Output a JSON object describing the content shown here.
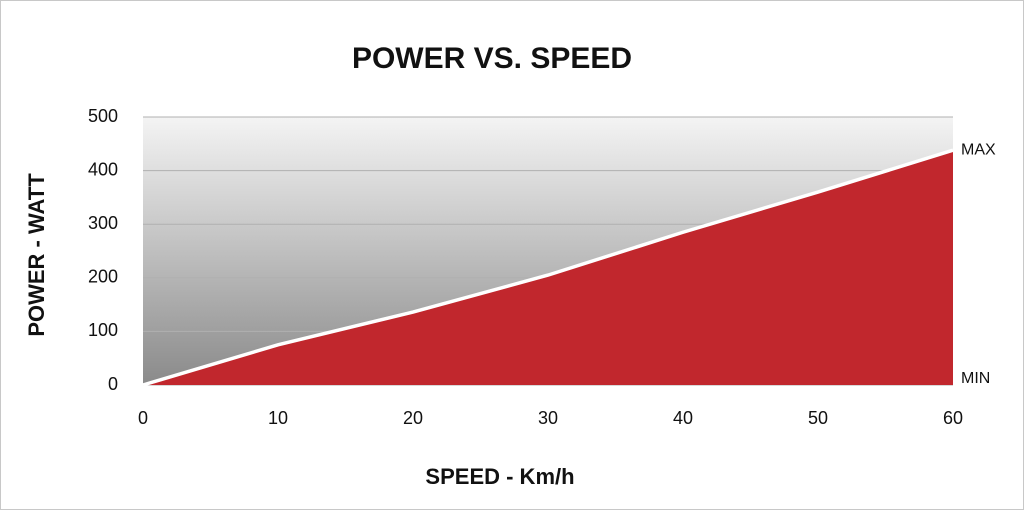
{
  "chart_data": {
    "type": "area",
    "title": "POWER VS. SPEED",
    "xlabel": "SPEED - Km/h",
    "ylabel": "POWER - WATT",
    "x": [
      0,
      10,
      20,
      30,
      40,
      50,
      60
    ],
    "series": [
      {
        "name": "Power",
        "color": "#c1272d",
        "values": [
          0,
          75,
          136,
          205,
          285,
          360,
          438
        ]
      }
    ],
    "xlim": [
      0,
      60
    ],
    "xticks": [
      0,
      10,
      20,
      30,
      40,
      50,
      60
    ],
    "ylim": [
      0,
      500
    ],
    "yticks": [
      0,
      100,
      200,
      300,
      400,
      500
    ],
    "grid": true,
    "annotations": [
      "MAX",
      "MIN"
    ]
  }
}
